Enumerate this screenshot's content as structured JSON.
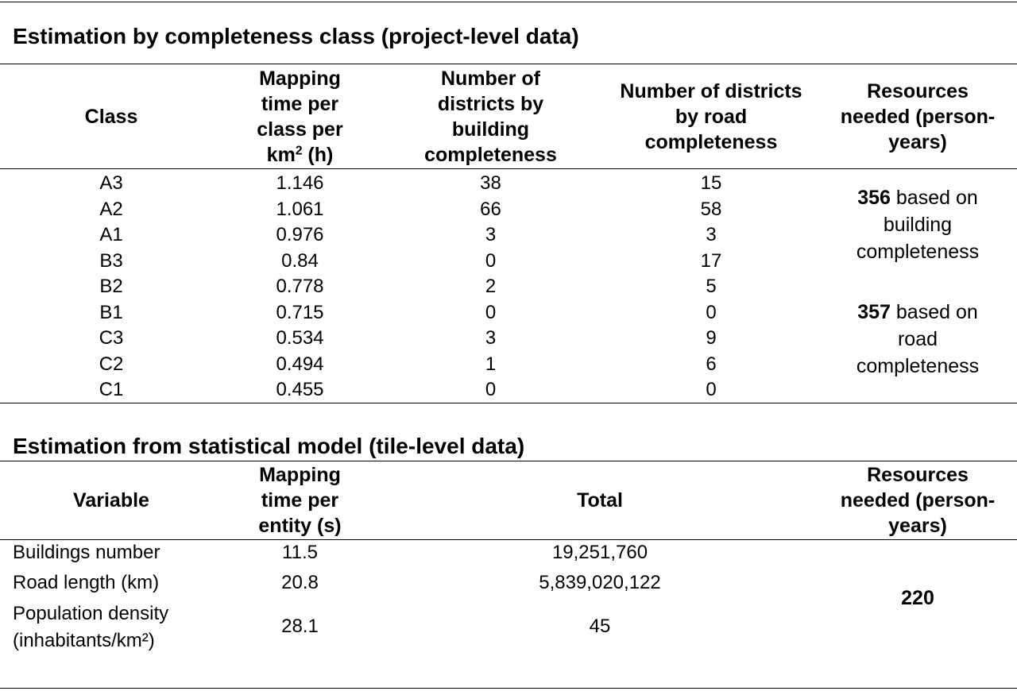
{
  "section1": {
    "title": "Estimation by completeness class (project-level data)",
    "headers": {
      "class": "Class",
      "mapping_time_lines": [
        "Mapping",
        "time per",
        "class per"
      ],
      "mapping_time_last_base": "km",
      "mapping_time_last_sup": "2",
      "mapping_time_last_rest": " (h)",
      "building": "Number of districts by building completeness",
      "road": "Number of districts by road completeness",
      "resources": "Resources needed (person-years)"
    },
    "rows": [
      {
        "class": "A3",
        "time": "1.146",
        "building": "38",
        "road": "15"
      },
      {
        "class": "A2",
        "time": "1.061",
        "building": "66",
        "road": "58"
      },
      {
        "class": "A1",
        "time": "0.976",
        "building": "3",
        "road": "3"
      },
      {
        "class": "B3",
        "time": "0.84",
        "building": "0",
        "road": "17"
      },
      {
        "class": "B2",
        "time": "0.778",
        "building": "2",
        "road": "5"
      },
      {
        "class": "B1",
        "time": "0.715",
        "building": "0",
        "road": "0"
      },
      {
        "class": "C3",
        "time": "0.534",
        "building": "3",
        "road": "9"
      },
      {
        "class": "C2",
        "time": "0.494",
        "building": "1",
        "road": "6"
      },
      {
        "class": "C1",
        "time": "0.455",
        "building": "0",
        "road": "0"
      }
    ],
    "resources_building": {
      "value": "356",
      "text_line1": " based on",
      "text_line2": "building",
      "text_line3": "completeness"
    },
    "resources_road": {
      "value": "357",
      "text_line1": " based on",
      "text_line2": "road",
      "text_line3": "completeness"
    }
  },
  "section2": {
    "title": "Estimation from statistical model (tile-level data)",
    "headers": {
      "variable": "Variable",
      "mapping_time": "Mapping time per entity (s)",
      "total": "Total",
      "resources": "Resources needed (person-years)"
    },
    "rows": [
      {
        "variable": "Buildings number",
        "time": "11.5",
        "total": "19,251,760"
      },
      {
        "variable": "Road length (km)",
        "time": "20.8",
        "total": "5,839,020,122"
      },
      {
        "variable_line1": "Population density",
        "variable_line2": "(inhabitants/km²)",
        "time": "28.1",
        "total": "45"
      }
    ],
    "resources_value": "220"
  }
}
